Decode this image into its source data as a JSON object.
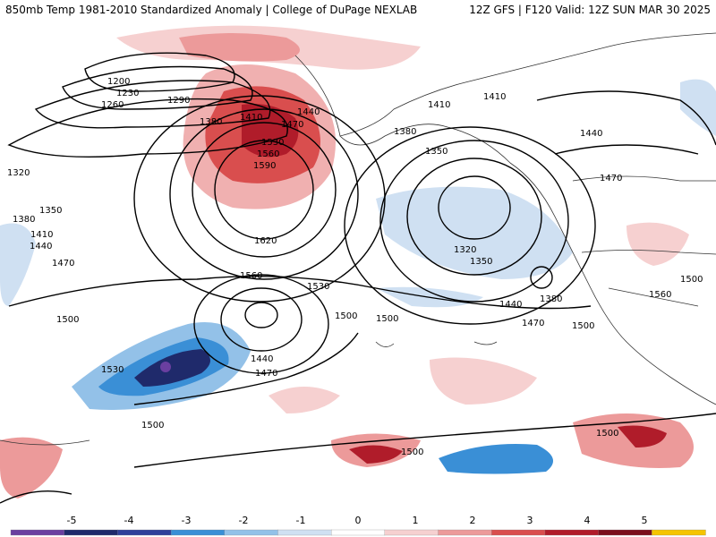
{
  "header": {
    "left_title": "850mb Temp 1981-2010 Standardized Anomaly | College of DuPage NEXLAB",
    "right_title": "12Z GFS | F120 Valid: 12Z SUN MAR 30 2025"
  },
  "contour_labels": [
    "1200",
    "1230",
    "1260",
    "1290",
    "1380",
    "1410",
    "1440",
    "1470",
    "1530",
    "1560",
    "1590",
    "1620",
    "1560",
    "1530",
    "1500",
    "1320",
    "1350",
    "1380",
    "1410",
    "1440",
    "1470",
    "1500",
    "1410",
    "1410",
    "1380",
    "1350",
    "1320",
    "1350",
    "1380",
    "1440",
    "1470",
    "1500",
    "1500",
    "1440",
    "1470",
    "1440",
    "1470",
    "1500",
    "1560",
    "1530",
    "1500",
    "1500",
    "1500"
  ],
  "legend": {
    "ticks": [
      "-5",
      "-4",
      "-3",
      "-2",
      "-1",
      "0",
      "1",
      "2",
      "3",
      "4",
      "5"
    ],
    "colors": [
      "#6a3fa0",
      "#1f2a6b",
      "#2f3f9a",
      "#3a8fd6",
      "#93c1e8",
      "#cfe0f2",
      "#ffffff",
      "#f6d0d0",
      "#ec9a9a",
      "#d94e4e",
      "#b01c2a",
      "#7a0f1c",
      "#f5c400"
    ]
  }
}
